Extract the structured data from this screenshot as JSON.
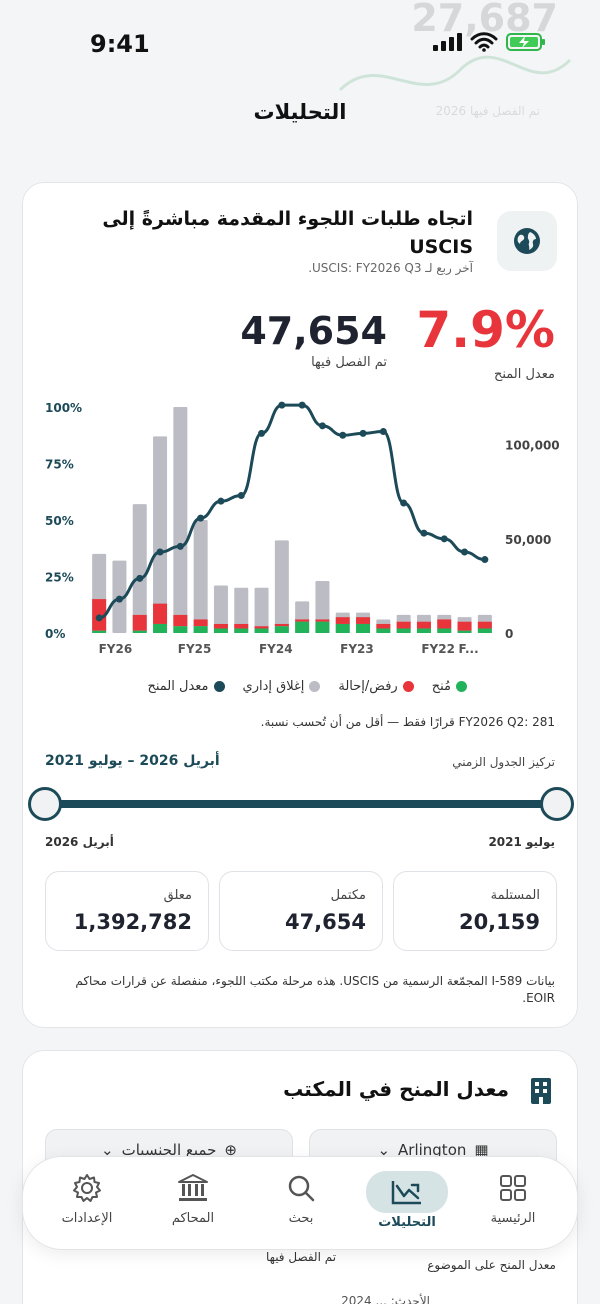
{
  "status_bar": {
    "time": "9:41"
  },
  "ghost": {
    "number": "27,687",
    "caption": "تم الفصل فيها 2026"
  },
  "page_title": "التحليلات",
  "card1": {
    "title": "اتجاه طلبات اللجوء المقدمة مباشرةً إلى USCIS",
    "subtitle": "آخر ربع لـ USCIS: FY2026 Q3.",
    "grant_rate": "7.9%",
    "grant_rate_label": "معدل المنح",
    "decided_value": "47,654",
    "decided_label": "تم الفصل فيها",
    "q2_note": "FY2026 Q2: 281 قرارًا فقط — أقل من أن تُحسب نسبة.",
    "timeline_label": "تركيز الجدول الزمني",
    "timeline_range": "أبريل 2026 – يوليو 2021",
    "timeline_start": "يوليو 2021",
    "timeline_end": "أبريل 2026",
    "stats": [
      {
        "label": "المستلمة",
        "value": "20,159"
      },
      {
        "label": "مكتمل",
        "value": "47,654"
      },
      {
        "label": "معلق",
        "value": "1,392,782"
      }
    ],
    "footnote": "بيانات I-589 المجمّعة الرسمية من USCIS. هذه مرحلة مكتب اللجوء، منفصلة عن قرارات محاكم EOIR."
  },
  "legend": [
    {
      "label": "مُنح",
      "color": "#22b35a"
    },
    {
      "label": "رفض/إحالة",
      "color": "#e8353b"
    },
    {
      "label": "إغلاق إداري",
      "color": "#bcbdc4"
    },
    {
      "label": "معدل المنح",
      "color": "#1c4a58"
    }
  ],
  "chart_data": {
    "type": "bar",
    "y_left_ticks": [
      "100%",
      "75%",
      "50%",
      "25%",
      "0%"
    ],
    "y_right_ticks": [
      "100,000",
      "50,000",
      "0"
    ],
    "x_tick_labels": [
      "FY26",
      "FY25",
      "FY24",
      "FY23",
      "FY22",
      "F..."
    ],
    "bar_totals_pct": [
      35,
      32,
      57,
      87,
      100,
      50,
      21,
      20,
      20,
      41,
      14,
      23,
      9,
      9,
      6,
      8,
      8,
      8,
      7,
      8
    ],
    "bar_granted_pct": [
      1,
      0,
      1,
      4,
      3,
      3,
      2,
      2,
      2,
      3,
      5,
      5,
      4,
      4,
      2,
      2,
      2,
      2,
      1,
      2
    ],
    "bar_referred_pct": [
      14,
      0,
      7,
      9,
      5,
      3,
      2,
      2,
      1,
      1,
      1,
      1,
      3,
      3,
      2,
      3,
      3,
      4,
      4,
      3
    ],
    "line_grant_rate": [
      8000,
      18000,
      29000,
      43000,
      46000,
      61000,
      70000,
      73000,
      106000,
      121000,
      121000,
      110000,
      105000,
      106000,
      107000,
      69000,
      53000,
      50000,
      43000,
      39000
    ],
    "line_ymax": 120000,
    "colors": {
      "granted": "#22b35a",
      "referred": "#e8353b",
      "closed": "#bcbdc4",
      "line": "#1c4a58"
    }
  },
  "card2": {
    "title": "معدل المنح في المكتب",
    "office_select": "Arlington",
    "nationality_select": "جميع الجنسيات"
  },
  "below": {
    "decided": "تم الفصل فيها",
    "merits": "معدل المنح على الموضوع",
    "latest": "الأحدث: ... 2024"
  },
  "tabbar": [
    {
      "label": "الرئيسية"
    },
    {
      "label": "التحليلات"
    },
    {
      "label": "بحث"
    },
    {
      "label": "المحاكم"
    },
    {
      "label": "الإعدادات"
    }
  ]
}
